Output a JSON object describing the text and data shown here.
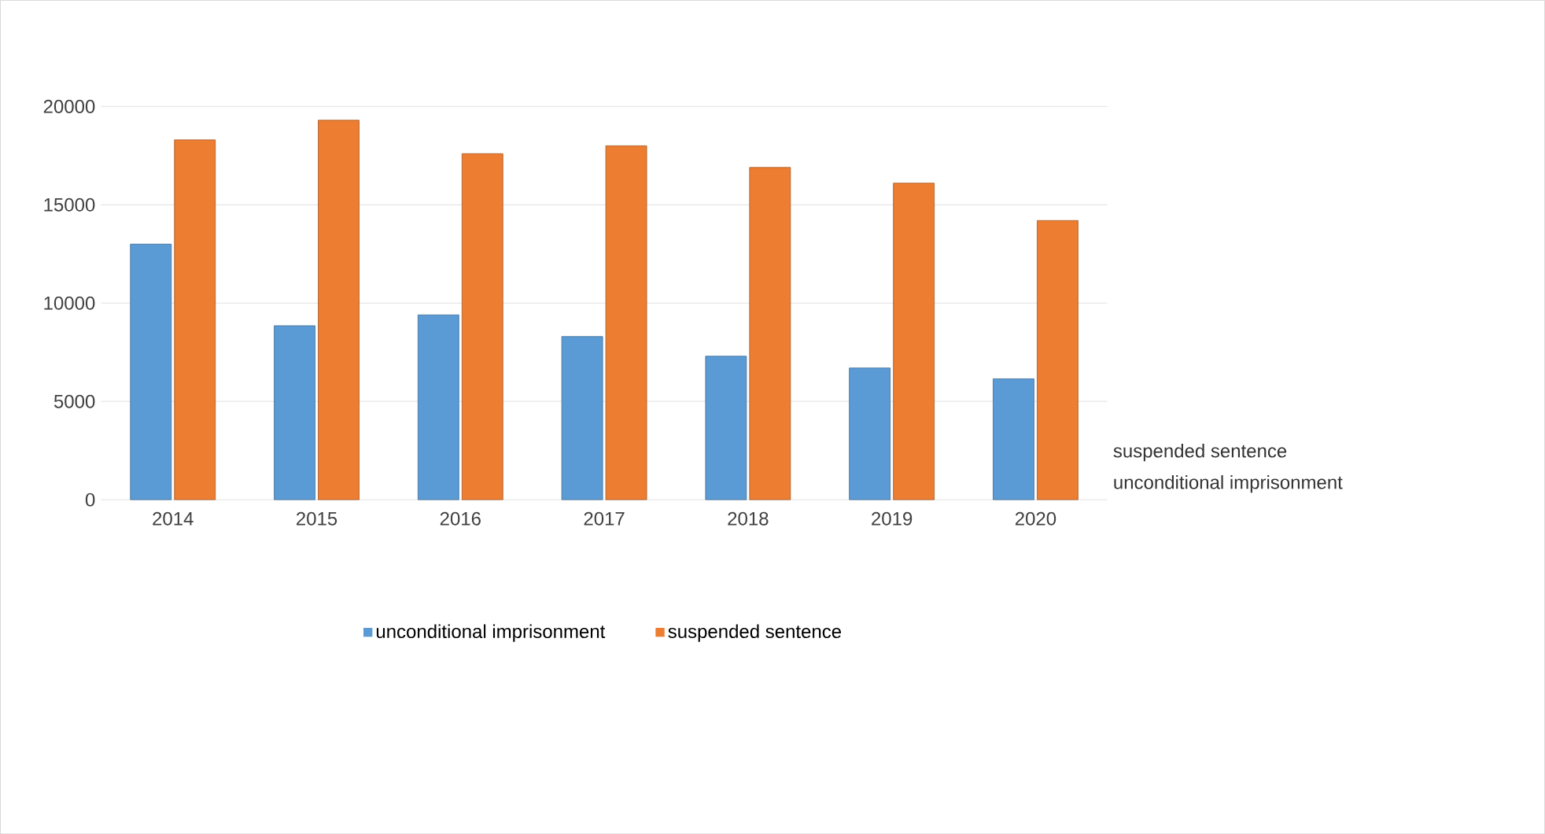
{
  "chart_data": {
    "type": "bar",
    "categories": [
      "2014",
      "2015",
      "2016",
      "2017",
      "2018",
      "2019",
      "2020"
    ],
    "series": [
      {
        "name": "unconditional imprisonment",
        "color": "#5b9bd5",
        "values": [
          13000,
          8850,
          9400,
          8300,
          7300,
          6700,
          6150
        ]
      },
      {
        "name": "suspended sentence",
        "color": "#ed7d31",
        "values": [
          18300,
          19300,
          17600,
          18000,
          16900,
          16100,
          14200
        ]
      }
    ],
    "ylim": [
      0,
      20000
    ],
    "yticks": [
      0,
      5000,
      10000,
      15000,
      20000
    ],
    "grid": "y",
    "legend": "bottom",
    "annotations": [
      "suspended sentence",
      "unconditional imprisonment"
    ]
  }
}
